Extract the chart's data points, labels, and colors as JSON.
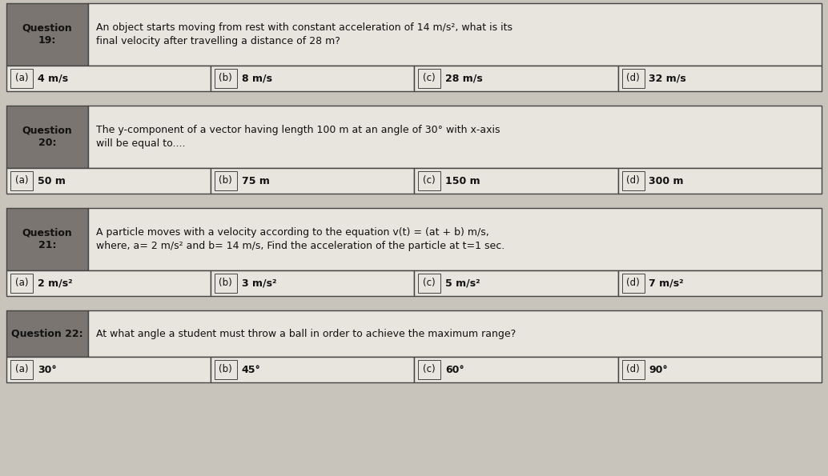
{
  "bg_color": "#c8c4bc",
  "table_bg": "#e8e4de",
  "header_bg": "#7a7570",
  "border_color": "#444444",
  "text_color": "#111111",
  "fig_width": 10.34,
  "fig_height": 5.95,
  "questions": [
    {
      "number": "Question\n19:",
      "question_text": "An object starts moving from rest with constant acceleration of 14 m/s², what is its\nfinal velocity after travelling a distance of 28 m?",
      "options": [
        {
          "label": "(a)",
          "text": "4 m/s"
        },
        {
          "label": "(b)",
          "text": "8 m/s"
        },
        {
          "label": "(c)",
          "text": "28 m/s"
        },
        {
          "label": "(d)",
          "text": "32 m/s"
        }
      ]
    },
    {
      "number": "Question\n20:",
      "question_text": "The y-component of a vector having length 100 m at an angle of 30° with x-axis\nwill be equal to....",
      "options": [
        {
          "label": "(a)",
          "text": "50 m"
        },
        {
          "label": "(b)",
          "text": "75 m"
        },
        {
          "label": "(c)",
          "text": "150 m"
        },
        {
          "label": "(d)",
          "text": "300 m"
        }
      ]
    },
    {
      "number": "Question\n21:",
      "question_text": "A particle moves with a velocity according to the equation v(t) = (at + b) m/s,\nwhere, a= 2 m/s² and b= 14 m/s, Find the acceleration of the particle at t=1 sec.",
      "options": [
        {
          "label": "(a)",
          "text": "2 m/s²"
        },
        {
          "label": "(b)",
          "text": "3 m/s²"
        },
        {
          "label": "(c)",
          "text": "5 m/s²"
        },
        {
          "label": "(d)",
          "text": "7 m/s²"
        }
      ]
    },
    {
      "number": "Question 22:",
      "question_text": "At what angle a student must throw a ball in order to achieve the maximum range?",
      "options": [
        {
          "label": "(a)",
          "text": "30°"
        },
        {
          "label": "(b)",
          "text": "45°"
        },
        {
          "label": "(c)",
          "text": "60°"
        },
        {
          "label": "(d)",
          "text": "90°"
        }
      ]
    }
  ]
}
